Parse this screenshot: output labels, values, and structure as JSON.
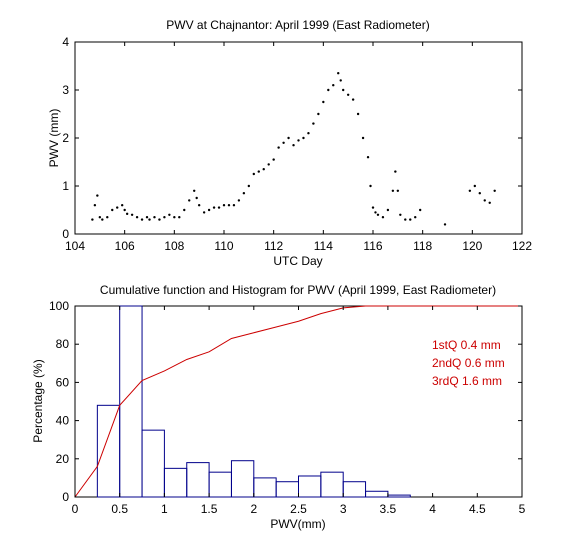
{
  "chart_data": [
    {
      "type": "scatter",
      "title": "PWV at Chajnantor: April 1999 (East Radiometer)",
      "xlabel": "UTC Day",
      "ylabel": "PWV (mm)",
      "xlim": [
        104,
        122
      ],
      "ylim": [
        0,
        4
      ],
      "xticks": [
        104,
        106,
        108,
        110,
        112,
        114,
        116,
        118,
        120,
        122
      ],
      "yticks": [
        0,
        1,
        2,
        3,
        4
      ],
      "grid": false,
      "series": [
        {
          "color": "#000000",
          "x": [
            104.7,
            104.8,
            104.9,
            105.0,
            105.1,
            105.3,
            105.5,
            105.7,
            105.9,
            106.0,
            106.1,
            106.3,
            106.5,
            106.7,
            106.9,
            107.0,
            107.2,
            107.4,
            107.6,
            107.8,
            108.0,
            108.2,
            108.4,
            108.6,
            108.8,
            108.9,
            109.0,
            109.2,
            109.4,
            109.6,
            109.8,
            110.0,
            110.2,
            110.4,
            110.6,
            110.8,
            111.0,
            111.2,
            111.4,
            111.6,
            111.8,
            112.0,
            112.2,
            112.4,
            112.6,
            112.8,
            113.0,
            113.2,
            113.4,
            113.6,
            113.8,
            114.0,
            114.2,
            114.4,
            114.6,
            114.7,
            114.8,
            115.0,
            115.2,
            115.4,
            115.6,
            115.8,
            115.9,
            116.0,
            116.1,
            116.2,
            116.4,
            116.6,
            116.8,
            116.9,
            117.0,
            117.1,
            117.3,
            117.5,
            117.7,
            117.9,
            118.9,
            119.9,
            120.1,
            120.3,
            120.5,
            120.7,
            120.9
          ],
          "values": [
            0.3,
            0.6,
            0.8,
            0.35,
            0.3,
            0.35,
            0.5,
            0.55,
            0.6,
            0.5,
            0.42,
            0.4,
            0.35,
            0.3,
            0.35,
            0.3,
            0.35,
            0.3,
            0.35,
            0.4,
            0.35,
            0.35,
            0.5,
            0.7,
            0.9,
            0.75,
            0.6,
            0.45,
            0.5,
            0.55,
            0.55,
            0.6,
            0.6,
            0.6,
            0.7,
            0.85,
            1.0,
            1.25,
            1.3,
            1.35,
            1.45,
            1.55,
            1.8,
            1.9,
            2.0,
            1.85,
            1.95,
            2.0,
            2.1,
            2.3,
            2.5,
            2.75,
            3.0,
            3.1,
            3.35,
            3.2,
            3.0,
            2.9,
            2.8,
            2.5,
            2.0,
            1.6,
            1.0,
            0.55,
            0.45,
            0.4,
            0.35,
            0.5,
            0.9,
            1.3,
            0.9,
            0.4,
            0.3,
            0.3,
            0.35,
            0.5,
            0.2,
            0.9,
            1.0,
            0.85,
            0.7,
            0.65,
            0.9
          ]
        }
      ]
    },
    {
      "type": "histogram+line",
      "title": "Cumulative function and Histogram for PWV (April 1999, East Radiometer)",
      "xlabel": "PWV(mm)",
      "ylabel": "Percentage (%)",
      "xlim": [
        0,
        5
      ],
      "ylim": [
        0,
        100
      ],
      "xticks": [
        0,
        0.5,
        1,
        1.5,
        2,
        2.5,
        3,
        3.5,
        4,
        4.5,
        5
      ],
      "yticks": [
        0,
        20,
        40,
        60,
        80,
        100
      ],
      "grid": false,
      "histogram": {
        "color": "#00008b",
        "bin_edges": [
          0,
          0.25,
          0.5,
          0.75,
          1.0,
          1.25,
          1.5,
          1.75,
          2.0,
          2.25,
          2.5,
          2.75,
          3.0,
          3.25,
          3.5,
          3.75
        ],
        "values": [
          0,
          48,
          100,
          35,
          15,
          18,
          13,
          19,
          10,
          8,
          11,
          13,
          8,
          3,
          1
        ]
      },
      "cumulative": {
        "color": "#cc0000",
        "x": [
          0,
          0.25,
          0.5,
          0.75,
          1.0,
          1.25,
          1.5,
          1.75,
          2.0,
          2.25,
          2.5,
          2.75,
          3.0,
          3.25,
          3.5
        ],
        "values": [
          0,
          16,
          48,
          61,
          66,
          72,
          76,
          83,
          86,
          89,
          92,
          96,
          99,
          100,
          100
        ]
      },
      "annotations": [
        {
          "text": "1stQ 0.4 mm",
          "color": "#cc0000"
        },
        {
          "text": "2ndQ 0.6 mm",
          "color": "#cc0000"
        },
        {
          "text": "3rdQ 1.6 mm",
          "color": "#cc0000"
        }
      ]
    }
  ]
}
